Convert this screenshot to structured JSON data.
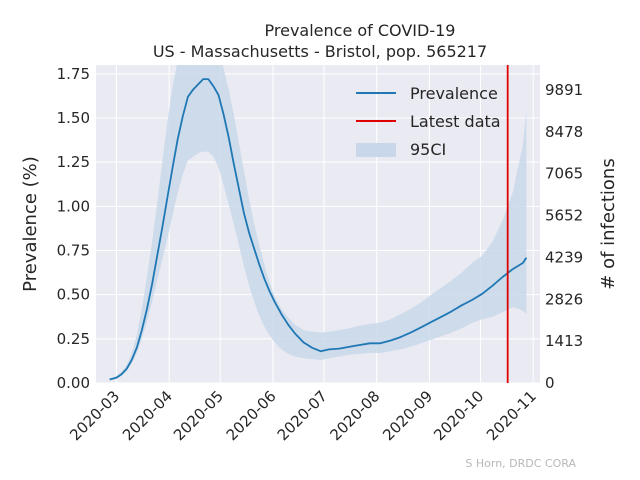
{
  "colors": {
    "plot_background": "#eaeaf2",
    "grid": "#ffffff",
    "line": "#1f77b4",
    "ci_fill": "#c8d8ea",
    "latest": "#e00000",
    "text": "#262626",
    "credit": "#b8b8b8"
  },
  "chart_data": {
    "type": "line",
    "title": "Prevalence of COVID-19",
    "subtitle": "US - Massachusetts - Bristol, pop. 565217",
    "ylabel": "Prevalence (%)",
    "y2label": "# of infections",
    "credit": "S Horn, DRDC CORA",
    "grid": true,
    "legend_position": "top-right",
    "xlim": [
      "2020-02-18",
      "2020-11-05"
    ],
    "ylim": [
      0,
      1.8
    ],
    "x_ticks": [
      "2020-03",
      "2020-04",
      "2020-05",
      "2020-06",
      "2020-07",
      "2020-08",
      "2020-09",
      "2020-10",
      "2020-11"
    ],
    "x_tick_dates": [
      "2020-03-01",
      "2020-04-01",
      "2020-05-01",
      "2020-06-01",
      "2020-07-01",
      "2020-08-01",
      "2020-09-01",
      "2020-10-01",
      "2020-11-01"
    ],
    "y_ticks": [
      "0.00",
      "0.25",
      "0.50",
      "0.75",
      "1.00",
      "1.25",
      "1.50",
      "1.75"
    ],
    "y2_ticks": [
      "0",
      "1413",
      "2826",
      "4239",
      "5652",
      "7065",
      "8478",
      "9891"
    ],
    "legend": [
      "Prevalence",
      "Latest data",
      "95CI"
    ],
    "latest_data_date": "2020-10-17",
    "series": [
      {
        "name": "Prevalence",
        "x": [
          "2020-02-26",
          "2020-03-01",
          "2020-03-04",
          "2020-03-07",
          "2020-03-10",
          "2020-03-13",
          "2020-03-16",
          "2020-03-19",
          "2020-03-22",
          "2020-03-25",
          "2020-03-28",
          "2020-03-31",
          "2020-04-03",
          "2020-04-06",
          "2020-04-09",
          "2020-04-12",
          "2020-04-15",
          "2020-04-18",
          "2020-04-21",
          "2020-04-24",
          "2020-04-27",
          "2020-04-30",
          "2020-05-03",
          "2020-05-06",
          "2020-05-09",
          "2020-05-12",
          "2020-05-15",
          "2020-05-18",
          "2020-05-21",
          "2020-05-24",
          "2020-05-27",
          "2020-05-30",
          "2020-06-02",
          "2020-06-06",
          "2020-06-10",
          "2020-06-14",
          "2020-06-19",
          "2020-06-24",
          "2020-06-29",
          "2020-07-04",
          "2020-07-10",
          "2020-07-16",
          "2020-07-22",
          "2020-07-28",
          "2020-08-03",
          "2020-08-09",
          "2020-08-15",
          "2020-08-21",
          "2020-08-27",
          "2020-09-02",
          "2020-09-08",
          "2020-09-14",
          "2020-09-20",
          "2020-09-26",
          "2020-10-02",
          "2020-10-08",
          "2020-10-14",
          "2020-10-20",
          "2020-10-26",
          "2020-10-28"
        ],
        "y": [
          0.02,
          0.03,
          0.05,
          0.08,
          0.13,
          0.2,
          0.3,
          0.42,
          0.56,
          0.72,
          0.88,
          1.05,
          1.22,
          1.38,
          1.51,
          1.62,
          1.66,
          1.69,
          1.72,
          1.72,
          1.68,
          1.63,
          1.52,
          1.39,
          1.24,
          1.1,
          0.96,
          0.85,
          0.76,
          0.67,
          0.59,
          0.52,
          0.46,
          0.39,
          0.33,
          0.28,
          0.23,
          0.2,
          0.18,
          0.19,
          0.195,
          0.205,
          0.215,
          0.225,
          0.225,
          0.24,
          0.26,
          0.285,
          0.315,
          0.345,
          0.375,
          0.405,
          0.44,
          0.47,
          0.505,
          0.55,
          0.6,
          0.645,
          0.68,
          0.71
        ]
      },
      {
        "name": "95CI",
        "x": [
          "2020-02-26",
          "2020-03-01",
          "2020-03-04",
          "2020-03-07",
          "2020-03-10",
          "2020-03-13",
          "2020-03-16",
          "2020-03-19",
          "2020-03-22",
          "2020-03-25",
          "2020-03-28",
          "2020-03-31",
          "2020-04-03",
          "2020-04-06",
          "2020-04-09",
          "2020-04-12",
          "2020-04-15",
          "2020-04-18",
          "2020-04-21",
          "2020-04-24",
          "2020-04-27",
          "2020-04-30",
          "2020-05-03",
          "2020-05-06",
          "2020-05-09",
          "2020-05-12",
          "2020-05-15",
          "2020-05-18",
          "2020-05-21",
          "2020-05-24",
          "2020-05-27",
          "2020-05-30",
          "2020-06-02",
          "2020-06-06",
          "2020-06-10",
          "2020-06-14",
          "2020-06-19",
          "2020-06-24",
          "2020-06-29",
          "2020-07-04",
          "2020-07-10",
          "2020-07-16",
          "2020-07-22",
          "2020-07-28",
          "2020-08-03",
          "2020-08-09",
          "2020-08-15",
          "2020-08-21",
          "2020-08-27",
          "2020-09-02",
          "2020-09-08",
          "2020-09-14",
          "2020-09-20",
          "2020-09-26",
          "2020-10-02",
          "2020-10-08",
          "2020-10-14",
          "2020-10-20",
          "2020-10-26",
          "2020-10-28"
        ],
        "lower": [
          0.015,
          0.025,
          0.04,
          0.065,
          0.11,
          0.17,
          0.25,
          0.35,
          0.46,
          0.58,
          0.7,
          0.82,
          0.95,
          1.08,
          1.18,
          1.26,
          1.28,
          1.3,
          1.31,
          1.31,
          1.28,
          1.22,
          1.12,
          1.01,
          0.9,
          0.78,
          0.66,
          0.55,
          0.46,
          0.38,
          0.32,
          0.27,
          0.23,
          0.19,
          0.165,
          0.15,
          0.14,
          0.135,
          0.13,
          0.14,
          0.15,
          0.16,
          0.165,
          0.17,
          0.17,
          0.18,
          0.19,
          0.205,
          0.225,
          0.245,
          0.265,
          0.285,
          0.31,
          0.34,
          0.36,
          0.375,
          0.4,
          0.43,
          0.41,
          0.39
        ],
        "upper": [
          0.025,
          0.04,
          0.065,
          0.1,
          0.17,
          0.27,
          0.42,
          0.6,
          0.8,
          1.02,
          1.25,
          1.48,
          1.68,
          1.82,
          1.9,
          1.92,
          1.92,
          1.92,
          1.92,
          1.92,
          1.9,
          1.86,
          1.78,
          1.66,
          1.52,
          1.36,
          1.2,
          1.04,
          0.9,
          0.78,
          0.67,
          0.57,
          0.49,
          0.42,
          0.37,
          0.33,
          0.3,
          0.29,
          0.285,
          0.29,
          0.3,
          0.31,
          0.325,
          0.335,
          0.34,
          0.36,
          0.39,
          0.42,
          0.455,
          0.5,
          0.54,
          0.58,
          0.625,
          0.68,
          0.72,
          0.8,
          0.92,
          1.08,
          1.35,
          1.55
        ]
      }
    ]
  }
}
